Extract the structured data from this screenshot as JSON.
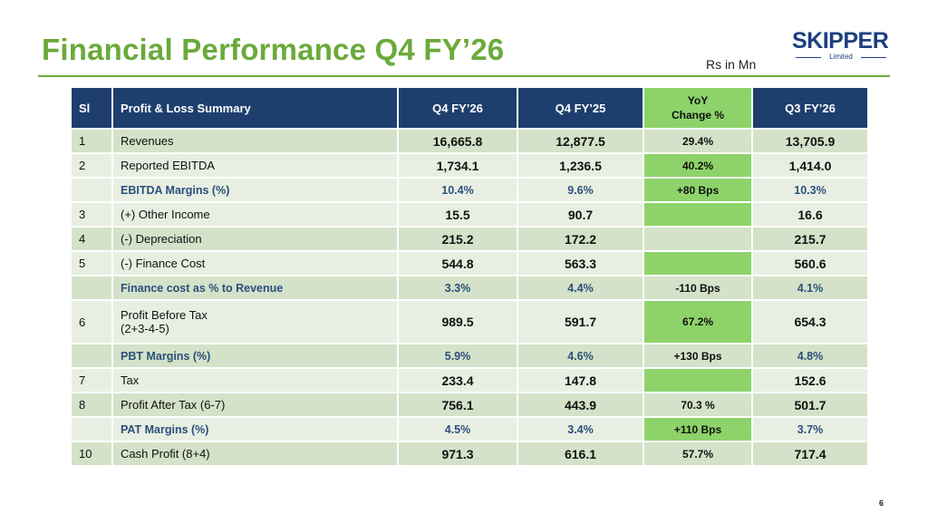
{
  "title": "Financial Performance Q4 FY’26",
  "units": "Rs in Mn",
  "logo": {
    "word": "SKIPPER",
    "sub": "Limited"
  },
  "page_number": "6",
  "table": {
    "headers": {
      "sl": "Sl",
      "label": "Profit & Loss Summary",
      "q4fy26": "Q4 FY’26",
      "q4fy25": "Q4 FY’25",
      "yoy_line1": "YoY",
      "yoy_line2": "Change %",
      "q3fy26": "Q3 FY’26"
    },
    "rows": [
      {
        "sl": "1",
        "label": "Revenues",
        "q4fy26": "16,665.8",
        "q4fy25": "12,877.5",
        "yoy": "29.4%",
        "q3fy26": "13,705.9"
      },
      {
        "sl": "2",
        "label": "Reported EBITDA",
        "q4fy26": "1,734.1",
        "q4fy25": "1,236.5",
        "yoy": "40.2%",
        "q3fy26": "1,414.0"
      },
      {
        "sl": "",
        "label": "EBITDA Margins  (%)",
        "q4fy26": "10.4%",
        "q4fy25": "9.6%",
        "yoy": "+80 Bps",
        "q3fy26": "10.3%"
      },
      {
        "sl": "3",
        "label": "(+) Other Income",
        "q4fy26": "15.5",
        "q4fy25": "90.7",
        "yoy": "",
        "q3fy26": "16.6"
      },
      {
        "sl": "4",
        "label": "(-) Depreciation",
        "q4fy26": "215.2",
        "q4fy25": "172.2",
        "yoy": "",
        "q3fy26": "215.7"
      },
      {
        "sl": "5",
        "label": "(-) Finance Cost",
        "q4fy26": "544.8",
        "q4fy25": "563.3",
        "yoy": "",
        "q3fy26": "560.6"
      },
      {
        "sl": "",
        "label": "Finance cost as % to Revenue",
        "q4fy26": "3.3%",
        "q4fy25": "4.4%",
        "yoy": "-110 Bps",
        "q3fy26": "4.1%"
      },
      {
        "sl": "6",
        "label": "Profit  Before Tax",
        "label2": "(2+3-4-5)",
        "q4fy26": "989.5",
        "q4fy25": "591.7",
        "yoy": "67.2%",
        "q3fy26": "654.3"
      },
      {
        "sl": "",
        "label": "PBT Margins (%)",
        "q4fy26": "5.9%",
        "q4fy25": "4.6%",
        "yoy": "+130 Bps",
        "q3fy26": "4.8%"
      },
      {
        "sl": "7",
        "label": "Tax",
        "q4fy26": "233.4",
        "q4fy25": "147.8",
        "yoy": "",
        "q3fy26": "152.6"
      },
      {
        "sl": "8",
        "label": "Profit After Tax (6-7)",
        "q4fy26": "756.1",
        "q4fy25": "443.9",
        "yoy": "70.3 %",
        "q3fy26": "501.7"
      },
      {
        "sl": "",
        "label": "PAT Margins (%)",
        "q4fy26": "4.5%",
        "q4fy25": "3.4%",
        "yoy": "+110 Bps",
        "q3fy26": "3.7%"
      },
      {
        "sl": "10",
        "label": "Cash Profit (8+4)",
        "q4fy26": "971.3",
        "q4fy25": "616.1",
        "yoy": "57.7%",
        "q3fy26": "717.4"
      }
    ]
  },
  "colors": {
    "title_green": "#6aaa3a",
    "header_navy": "#1e3f6e",
    "yoy_green": "#8dd36a",
    "row_light": "#e8efe2",
    "row_dark": "#d3e2c8",
    "margin_text": "#2c4f7c",
    "logo_blue": "#1d3f80"
  }
}
